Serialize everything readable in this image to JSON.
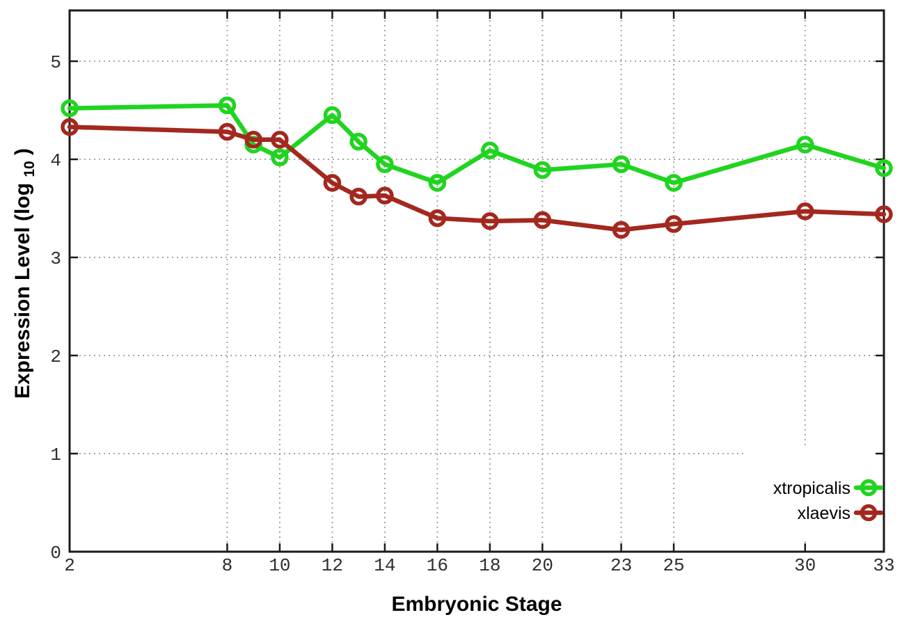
{
  "figure": {
    "background_color": "#ffffff",
    "ylabel_parts": [
      "Expression Level (log",
      "10",
      ")"
    ]
  },
  "chart_data": {
    "type": "line",
    "title": "",
    "xlabel": "Embryonic Stage",
    "ylabel": "Expression Level (log10)",
    "x": [
      2,
      8,
      9,
      10,
      12,
      13,
      14,
      16,
      18,
      20,
      23,
      25,
      30,
      33
    ],
    "xtick_values": [
      2,
      8,
      10,
      12,
      14,
      16,
      18,
      20,
      23,
      25,
      30,
      33
    ],
    "xtick_labels": [
      "2",
      "8",
      "10",
      "12",
      "14",
      "16",
      "18",
      "20",
      "23",
      "25",
      "30",
      "33"
    ],
    "ytick_values": [
      0,
      1,
      2,
      3,
      4,
      5
    ],
    "ytick_labels": [
      "0",
      "1",
      "2",
      "3",
      "4",
      "5"
    ],
    "xlim": [
      2,
      33
    ],
    "ylim": [
      0,
      5.5
    ],
    "grid": true,
    "grid_style": "dotted",
    "marker": "open-circle",
    "legend_position": "inside-bottom-right",
    "frame_color": "#1a1a1a",
    "grid_color": "#9a9a9a",
    "series": [
      {
        "name": "xtropicalis",
        "color": "#20d420",
        "values": [
          4.52,
          4.55,
          4.15,
          4.02,
          4.45,
          4.18,
          3.95,
          3.76,
          4.09,
          3.89,
          3.95,
          3.76,
          4.15,
          3.91
        ]
      },
      {
        "name": "xlaevis",
        "color": "#a3281e",
        "values": [
          4.33,
          4.28,
          4.2,
          4.2,
          3.76,
          3.62,
          3.63,
          3.4,
          3.37,
          3.38,
          3.28,
          3.34,
          3.47,
          3.44
        ]
      }
    ]
  }
}
